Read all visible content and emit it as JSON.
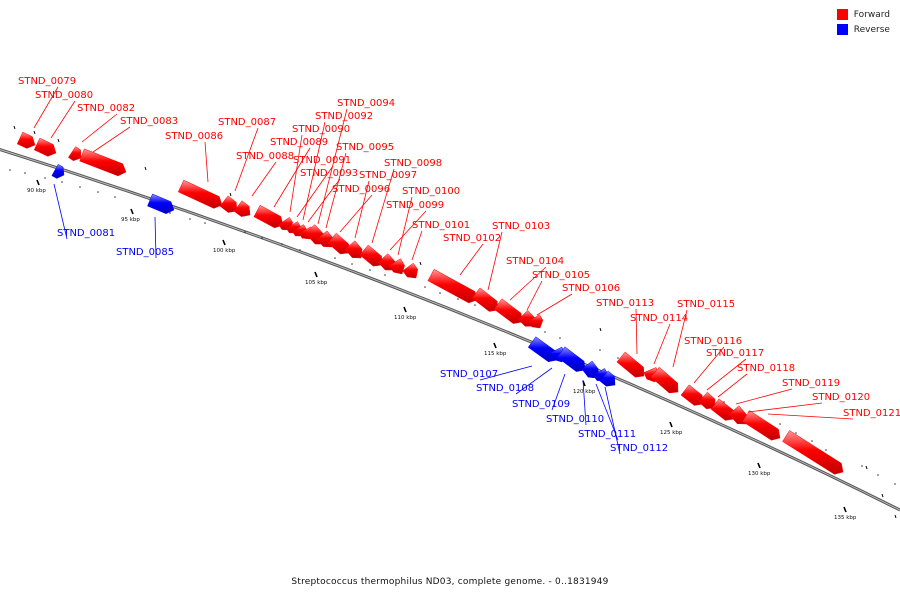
{
  "legend": {
    "forward_label": "Forward",
    "reverse_label": "Reverse",
    "forward_color": "#ff0000",
    "reverse_color": "#0000ff"
  },
  "caption": "Streptococcus thermophilus ND03, complete genome. - 0..1831949",
  "ticks": [
    {
      "label": "90 kbp"
    },
    {
      "label": "95 kbp"
    },
    {
      "label": "100 kbp"
    },
    {
      "label": "105 kbp"
    },
    {
      "label": "110 kbp"
    },
    {
      "label": "115 kbp"
    },
    {
      "label": "120 kbp"
    },
    {
      "label": "125 kbp"
    },
    {
      "label": "130 kbp"
    },
    {
      "label": "135 kbp"
    }
  ],
  "genes": [
    {
      "name": "STND_0079",
      "strand": "forward"
    },
    {
      "name": "STND_0080",
      "strand": "forward"
    },
    {
      "name": "STND_0081",
      "strand": "reverse"
    },
    {
      "name": "STND_0082",
      "strand": "forward"
    },
    {
      "name": "STND_0083",
      "strand": "forward"
    },
    {
      "name": "STND_0085",
      "strand": "reverse"
    },
    {
      "name": "STND_0086",
      "strand": "forward"
    },
    {
      "name": "STND_0087",
      "strand": "forward"
    },
    {
      "name": "STND_0088",
      "strand": "forward"
    },
    {
      "name": "STND_0089",
      "strand": "forward"
    },
    {
      "name": "STND_0090",
      "strand": "forward"
    },
    {
      "name": "STND_0091",
      "strand": "forward"
    },
    {
      "name": "STND_0092",
      "strand": "forward"
    },
    {
      "name": "STND_0093",
      "strand": "forward"
    },
    {
      "name": "STND_0094",
      "strand": "forward"
    },
    {
      "name": "STND_0095",
      "strand": "forward"
    },
    {
      "name": "STND_0096",
      "strand": "forward"
    },
    {
      "name": "STND_0097",
      "strand": "forward"
    },
    {
      "name": "STND_0098",
      "strand": "forward"
    },
    {
      "name": "STND_0099",
      "strand": "forward"
    },
    {
      "name": "STND_0100",
      "strand": "forward"
    },
    {
      "name": "STND_0101",
      "strand": "forward"
    },
    {
      "name": "STND_0102",
      "strand": "forward"
    },
    {
      "name": "STND_0103",
      "strand": "forward"
    },
    {
      "name": "STND_0104",
      "strand": "forward"
    },
    {
      "name": "STND_0105",
      "strand": "forward"
    },
    {
      "name": "STND_0106",
      "strand": "forward"
    },
    {
      "name": "STND_0107",
      "strand": "reverse"
    },
    {
      "name": "STND_0108",
      "strand": "reverse"
    },
    {
      "name": "STND_0109",
      "strand": "reverse"
    },
    {
      "name": "STND_0110",
      "strand": "reverse"
    },
    {
      "name": "STND_0111",
      "strand": "reverse"
    },
    {
      "name": "STND_0112",
      "strand": "reverse"
    },
    {
      "name": "STND_0113",
      "strand": "forward"
    },
    {
      "name": "STND_0114",
      "strand": "forward"
    },
    {
      "name": "STND_0115",
      "strand": "forward"
    },
    {
      "name": "STND_0116",
      "strand": "forward"
    },
    {
      "name": "STND_0117",
      "strand": "forward"
    },
    {
      "name": "STND_0118",
      "strand": "forward"
    },
    {
      "name": "STND_0119",
      "strand": "forward"
    },
    {
      "name": "STND_0120",
      "strand": "forward"
    },
    {
      "name": "STND_0121",
      "strand": "forward"
    }
  ]
}
